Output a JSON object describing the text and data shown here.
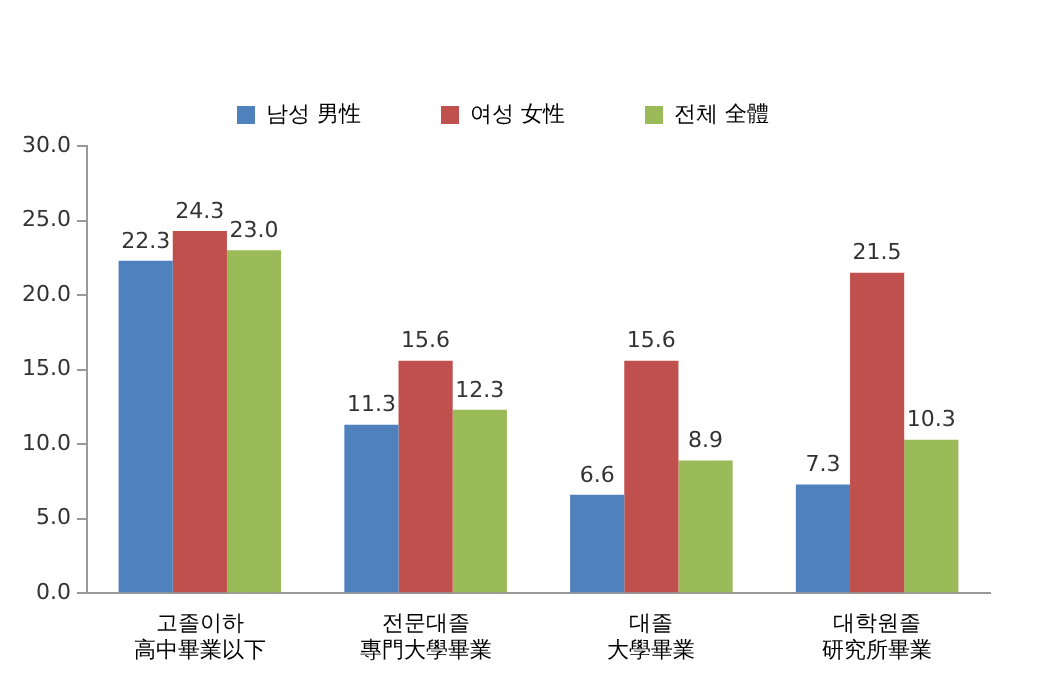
{
  "chart_data": {
    "type": "bar",
    "categories": [
      "고졸이하\n高中畢業以下",
      "전문대졸\n專門大學畢業",
      "대졸\n大學畢業",
      "대학원졸\n研究所畢業"
    ],
    "series": [
      {
        "name": "남성 男性",
        "color": "#4f81bd",
        "values": [
          22.3,
          11.3,
          6.6,
          7.3
        ]
      },
      {
        "name": "여성 女性",
        "color": "#c0504d",
        "values": [
          24.3,
          15.6,
          15.6,
          21.5
        ]
      },
      {
        "name": "전체 全體",
        "color": "#9bbb59",
        "values": [
          23.0,
          12.3,
          8.9,
          10.3
        ]
      }
    ],
    "ylim": [
      0,
      30
    ],
    "yticks": [
      {
        "value": 0,
        "label": "0.0"
      },
      {
        "value": 5,
        "label": "5.0"
      },
      {
        "value": 10,
        "label": "10.0"
      },
      {
        "value": 15,
        "label": "15.0"
      },
      {
        "value": 20,
        "label": "20.0"
      },
      {
        "value": 25,
        "label": "25.0"
      },
      {
        "value": 30,
        "label": "30.0"
      }
    ],
    "value_labels": [
      [
        "22.3",
        "11.3",
        "6.6",
        "7.3"
      ],
      [
        "24.3",
        "15.6",
        "15.6",
        "21.5"
      ],
      [
        "23.0",
        "12.3",
        "8.9",
        "10.3"
      ]
    ],
    "grid": false,
    "legend": "top"
  }
}
